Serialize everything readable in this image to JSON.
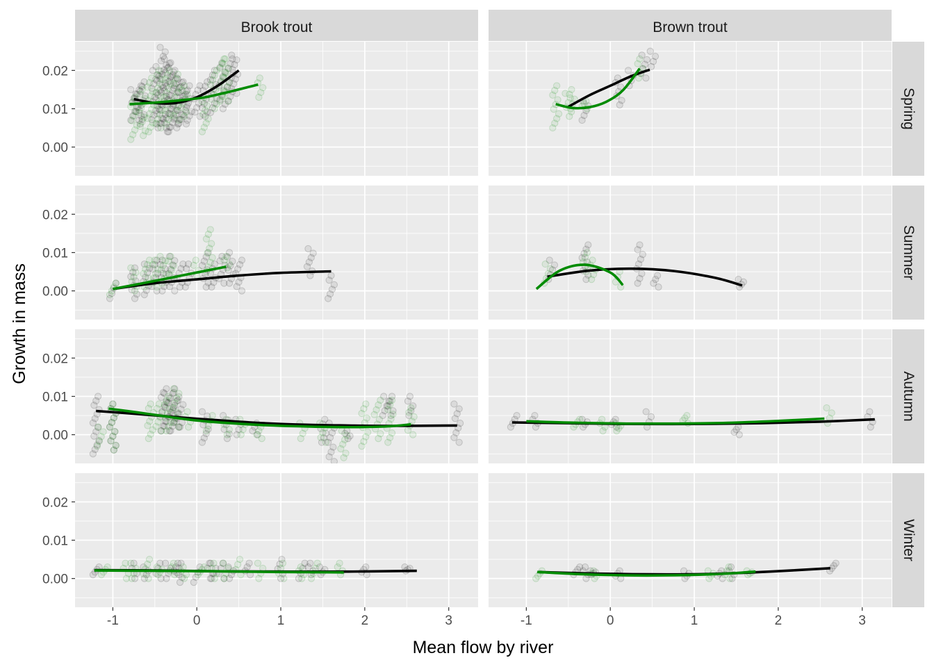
{
  "chart_data": {
    "type": "scatter",
    "xlabel": "Mean flow by river",
    "ylabel": "Growth in mass",
    "xlim": [
      -1.45,
      3.35
    ],
    "ylim": [
      -0.0075,
      0.0275
    ],
    "x_ticks": [
      -1,
      0,
      1,
      2,
      3
    ],
    "y_ticks": [
      0.0,
      0.01,
      0.02
    ],
    "y_tick_labels": [
      "0.00",
      "0.01",
      "0.02"
    ],
    "grid": true,
    "colors": {
      "black_group": "#000000",
      "green_group": "#008b00",
      "panel_bg": "#ebebeb",
      "strip_bg": "#d9d9d9"
    },
    "columns": [
      "Brook trout",
      "Brown trout"
    ],
    "rows": [
      "Spring",
      "Summer",
      "Autumn",
      "Winter"
    ],
    "panels": [
      {
        "column": "Brook trout",
        "row": "Spring",
        "points_black": {
          "x": [
            -0.75,
            -0.7,
            -0.65,
            -0.5,
            -0.45,
            -0.4,
            -0.35,
            -0.3,
            -0.25,
            -0.2,
            -0.15,
            -0.1,
            0.0,
            0.1,
            0.2,
            0.3,
            0.4,
            0.45
          ],
          "ymin": [
            0.007,
            0.007,
            0.006,
            0.006,
            0.005,
            0.005,
            0.004,
            0.004,
            0.005,
            0.006,
            0.006,
            0.007,
            0.008,
            0.008,
            0.009,
            0.01,
            0.012,
            0.014
          ],
          "ymax": [
            0.015,
            0.016,
            0.017,
            0.02,
            0.021,
            0.026,
            0.023,
            0.022,
            0.02,
            0.018,
            0.017,
            0.016,
            0.016,
            0.017,
            0.02,
            0.022,
            0.023,
            0.024
          ]
        },
        "points_green": {
          "x": [
            -0.75,
            -0.65,
            -0.55,
            -0.45,
            -0.35,
            -0.25,
            -0.15,
            0.1,
            0.2,
            0.3,
            0.35,
            0.75
          ],
          "ymin": [
            0.002,
            0.003,
            0.004,
            0.005,
            0.006,
            0.007,
            0.008,
            0.004,
            0.01,
            0.012,
            0.012,
            0.013
          ],
          "ymax": [
            0.013,
            0.015,
            0.018,
            0.02,
            0.02,
            0.019,
            0.016,
            0.013,
            0.02,
            0.023,
            0.023,
            0.018
          ]
        },
        "line_black": {
          "x": [
            -0.75,
            -0.5,
            -0.25,
            0.0,
            0.25,
            0.5
          ],
          "y": [
            0.0125,
            0.0115,
            0.0115,
            0.013,
            0.016,
            0.02
          ]
        },
        "line_green": {
          "x": [
            -0.8,
            -0.5,
            -0.2,
            0.1,
            0.4,
            0.73
          ],
          "y": [
            0.0112,
            0.0116,
            0.0122,
            0.013,
            0.0145,
            0.0163
          ]
        }
      },
      {
        "column": "Brown trout",
        "row": "Spring",
        "points_black": {
          "x": [
            -0.3,
            0.1,
            0.25,
            0.4,
            0.5
          ],
          "ymin": [
            0.007,
            0.011,
            0.016,
            0.018,
            0.021
          ],
          "ymax": [
            0.012,
            0.018,
            0.02,
            0.024,
            0.025
          ]
        },
        "points_green": {
          "x": [
            -0.65,
            -0.5,
            -0.45,
            -0.3,
            0.35
          ],
          "ymin": [
            0.005,
            0.008,
            0.01,
            0.01,
            0.018
          ],
          "ymax": [
            0.016,
            0.014,
            0.015,
            0.012,
            0.023
          ]
        },
        "line_black": {
          "x": [
            -0.5,
            -0.25,
            0.0,
            0.25,
            0.47
          ],
          "y": [
            0.0105,
            0.0135,
            0.016,
            0.0185,
            0.0202
          ]
        },
        "line_green": {
          "x": [
            -0.65,
            -0.45,
            -0.25,
            -0.05,
            0.15,
            0.35
          ],
          "y": [
            0.0112,
            0.0102,
            0.0104,
            0.0118,
            0.0148,
            0.0205
          ]
        }
      },
      {
        "column": "Brook trout",
        "row": "Summer",
        "points_black": {
          "x": [
            -1.0,
            -0.75,
            -0.6,
            -0.5,
            -0.4,
            -0.3,
            -0.2,
            -0.1,
            0.1,
            0.2,
            0.3,
            0.4,
            0.5,
            1.35,
            1.6
          ],
          "ymin": [
            -0.002,
            -0.002,
            -0.001,
            0.0,
            0.0,
            0.0,
            0.001,
            0.001,
            0.001,
            0.001,
            0.002,
            0.002,
            0.0,
            0.004,
            -0.002
          ],
          "ymax": [
            0.002,
            0.006,
            0.007,
            0.008,
            0.008,
            0.009,
            0.007,
            0.007,
            0.01,
            0.007,
            0.009,
            0.01,
            0.008,
            0.011,
            0.004
          ]
        },
        "points_green": {
          "x": [
            -1.0,
            -0.75,
            -0.6,
            -0.5,
            -0.4,
            -0.3,
            0.0,
            0.15,
            0.35
          ],
          "ymin": [
            -0.001,
            0.0,
            0.001,
            0.001,
            0.002,
            0.003,
            0.004,
            0.005,
            0.006
          ],
          "ymax": [
            0.002,
            0.006,
            0.008,
            0.008,
            0.009,
            0.009,
            0.008,
            0.016,
            0.009
          ]
        },
        "line_black": {
          "x": [
            -1.0,
            -0.5,
            0.0,
            0.5,
            1.0,
            1.6
          ],
          "y": [
            0.0005,
            0.002,
            0.003,
            0.004,
            0.0047,
            0.0051
          ]
        },
        "line_green": {
          "x": [
            -1.0,
            -0.5,
            0.0,
            0.35
          ],
          "y": [
            0.0005,
            0.0026,
            0.0048,
            0.0063
          ]
        }
      },
      {
        "column": "Brown trout",
        "row": "Summer",
        "points_black": {
          "x": [
            -0.7,
            -0.3,
            0.35,
            0.55,
            1.55
          ],
          "ymin": [
            0.003,
            0.003,
            0.002,
            0.001,
            0.001
          ],
          "ymax": [
            0.008,
            0.012,
            0.012,
            0.004,
            0.003
          ]
        },
        "points_green": {
          "x": [
            -0.75,
            -0.3,
            -0.2,
            0.1
          ],
          "ymin": [
            0.002,
            0.005,
            0.003,
            0.001
          ],
          "ymax": [
            0.007,
            0.01,
            0.008,
            0.005
          ]
        },
        "line_black": {
          "x": [
            -0.75,
            -0.25,
            0.25,
            0.75,
            1.25,
            1.57
          ],
          "y": [
            0.0037,
            0.0053,
            0.0058,
            0.0052,
            0.0034,
            0.0014
          ]
        },
        "line_green": {
          "x": [
            -0.88,
            -0.6,
            -0.3,
            0.0,
            0.15
          ],
          "y": [
            0.0005,
            0.0053,
            0.0068,
            0.0048,
            0.0015
          ]
        }
      },
      {
        "column": "Brook trout",
        "row": "Autumn",
        "points_black": {
          "x": [
            -1.2,
            -1.0,
            -0.4,
            -0.35,
            -0.3,
            -0.25,
            -0.2,
            0.1,
            0.35,
            0.5,
            0.7,
            1.5,
            1.6,
            1.8,
            2.25,
            2.3,
            2.55,
            3.1
          ],
          "ymin": [
            -0.005,
            -0.004,
            0.001,
            0.001,
            0.001,
            0.002,
            0.002,
            -0.002,
            -0.001,
            0.0,
            0.0,
            -0.002,
            -0.007,
            -0.001,
            0.005,
            0.005,
            0.005,
            -0.002
          ],
          "ymax": [
            0.01,
            0.008,
            0.011,
            0.012,
            0.012,
            0.011,
            0.009,
            0.006,
            0.005,
            0.004,
            0.003,
            0.004,
            0.003,
            0.001,
            0.01,
            0.01,
            0.01,
            0.008
          ]
        },
        "points_green": {
          "x": [
            -1.15,
            -1.0,
            -0.55,
            -0.45,
            -0.35,
            -0.25,
            -0.1,
            0.15,
            0.35,
            0.55,
            0.75,
            1.25,
            1.5,
            1.75,
            2.0,
            2.15,
            2.3,
            2.55
          ],
          "ymin": [
            -0.003,
            -0.004,
            -0.001,
            0.001,
            0.001,
            0.002,
            0.002,
            0.001,
            0.0,
            0.0,
            -0.001,
            -0.001,
            -0.002,
            -0.006,
            -0.003,
            -0.001,
            -0.002,
            0.0
          ],
          "ymax": [
            0.002,
            0.008,
            0.008,
            0.008,
            0.01,
            0.012,
            0.006,
            0.005,
            0.004,
            0.004,
            0.002,
            0.003,
            0.003,
            0.001,
            0.008,
            0.009,
            0.009,
            0.007
          ]
        },
        "line_black": {
          "x": [
            -1.2,
            -0.7,
            -0.2,
            0.3,
            0.8,
            1.3,
            1.8,
            2.3,
            3.1
          ],
          "y": [
            0.0062,
            0.0054,
            0.0045,
            0.0037,
            0.003,
            0.0026,
            0.0024,
            0.0023,
            0.0024
          ]
        },
        "line_green": {
          "x": [
            -1.05,
            -0.7,
            -0.35,
            0.0,
            0.4,
            0.8,
            1.2,
            1.6,
            2.0,
            2.3,
            2.55
          ],
          "y": [
            0.0068,
            0.0058,
            0.0047,
            0.0037,
            0.003,
            0.0025,
            0.0022,
            0.002,
            0.002,
            0.0022,
            0.0027
          ]
        }
      },
      {
        "column": "Brown trout",
        "row": "Autumn",
        "points_black": {
          "x": [
            -1.15,
            -0.9,
            -0.3,
            0.05,
            0.45,
            1.5,
            3.1
          ],
          "ymin": [
            0.002,
            0.002,
            0.002,
            0.002,
            0.002,
            0.0,
            0.002
          ],
          "ymax": [
            0.005,
            0.005,
            0.004,
            0.004,
            0.006,
            0.002,
            0.006
          ]
        },
        "points_green": {
          "x": [
            -0.4,
            -0.1,
            0.1,
            0.9,
            2.6
          ],
          "ymin": [
            0.002,
            0.001,
            0.001,
            0.003,
            0.003
          ],
          "ymax": [
            0.004,
            0.004,
            0.003,
            0.005,
            0.007
          ]
        },
        "line_black": {
          "x": [
            -1.17,
            -0.5,
            0.2,
            1.0,
            1.8,
            2.5,
            3.15
          ],
          "y": [
            0.0032,
            0.003,
            0.0028,
            0.0028,
            0.003,
            0.0034,
            0.004
          ]
        },
        "line_green": {
          "x": [
            -1.0,
            -0.4,
            0.2,
            0.8,
            1.4,
            2.0,
            2.55
          ],
          "y": [
            0.0035,
            0.0031,
            0.0029,
            0.0029,
            0.0031,
            0.0036,
            0.0042
          ]
        }
      },
      {
        "column": "Brook trout",
        "row": "Winter",
        "points_black": {
          "x": [
            -1.2,
            -0.75,
            -0.6,
            -0.45,
            -0.35,
            -0.25,
            -0.2,
            0.0,
            0.15,
            0.2,
            0.3,
            0.4,
            0.6,
            1.0,
            1.25,
            1.35,
            1.5,
            2.0,
            2.5
          ],
          "ymin": [
            0.001,
            0.0,
            0.0,
            0.0,
            0.0,
            0.001,
            -0.001,
            -0.001,
            0.0,
            0.0,
            0.0,
            0.0,
            0.001,
            0.0,
            0.0,
            0.001,
            0.001,
            0.001,
            0.002
          ],
          "ymax": [
            0.003,
            0.004,
            0.003,
            0.004,
            0.004,
            0.004,
            0.004,
            0.003,
            0.004,
            0.004,
            0.004,
            0.003,
            0.004,
            0.005,
            0.004,
            0.004,
            0.003,
            0.003,
            0.003
          ]
        },
        "points_green": {
          "x": [
            -1.1,
            -0.85,
            -0.75,
            -0.6,
            -0.45,
            -0.3,
            -0.15,
            0.05,
            0.2,
            0.35,
            0.5,
            0.75,
            1.0,
            1.25,
            1.4,
            1.7
          ],
          "ymin": [
            0.001,
            0.0,
            0.0,
            0.0,
            0.001,
            0.001,
            0.0,
            0.001,
            0.0,
            0.0,
            0.001,
            0.0,
            0.0,
            0.0,
            0.0,
            0.001
          ],
          "ymax": [
            0.003,
            0.004,
            0.004,
            0.005,
            0.003,
            0.004,
            0.003,
            0.003,
            0.004,
            0.004,
            0.005,
            0.004,
            0.004,
            0.003,
            0.004,
            0.004
          ]
        },
        "line_black": {
          "x": [
            -1.22,
            -0.5,
            0.2,
            1.0,
            1.8,
            2.62
          ],
          "y": [
            0.0022,
            0.0021,
            0.0019,
            0.0018,
            0.0018,
            0.002
          ]
        },
        "line_green": {
          "x": [
            -1.22,
            -0.5,
            0.2,
            1.0,
            1.75
          ],
          "y": [
            0.0021,
            0.002,
            0.0019,
            0.0017,
            0.0016
          ]
        }
      },
      {
        "column": "Brown trout",
        "row": "Winter",
        "points_black": {
          "x": [
            -0.4,
            -0.3,
            -0.2,
            0.1,
            0.9,
            1.3,
            1.45,
            2.65
          ],
          "ymin": [
            0.001,
            0.0,
            0.001,
            0.0,
            0.0,
            0.0,
            0.0,
            0.002
          ],
          "ymax": [
            0.003,
            0.003,
            0.002,
            0.002,
            0.002,
            0.002,
            0.003,
            0.004
          ]
        },
        "points_green": {
          "x": [
            -0.85,
            -0.2,
            1.2,
            1.4,
            1.65
          ],
          "ymin": [
            0.0,
            0.0,
            0.0,
            0.0,
            0.001
          ],
          "ymax": [
            0.002,
            0.002,
            0.002,
            0.003,
            0.002
          ]
        },
        "line_black": {
          "x": [
            -0.85,
            -0.2,
            0.5,
            1.2,
            1.9,
            2.62
          ],
          "y": [
            0.0017,
            0.0013,
            0.0011,
            0.0012,
            0.0018,
            0.0027
          ]
        },
        "line_green": {
          "x": [
            -0.87,
            -0.3,
            0.3,
            0.9,
            1.4,
            1.73
          ],
          "y": [
            0.0017,
            0.0011,
            0.0008,
            0.0009,
            0.0013,
            0.0018
          ]
        }
      }
    ]
  }
}
